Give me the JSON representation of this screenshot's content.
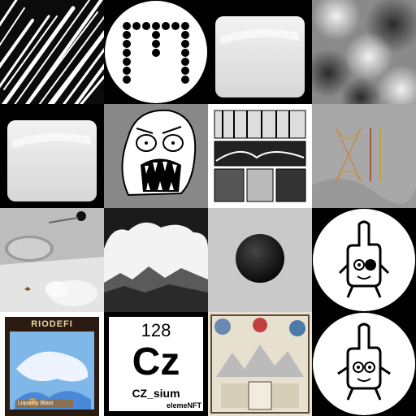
{
  "gallery": {
    "tiles": [
      {
        "id": "streaks"
      },
      {
        "id": "dot-m-logo"
      },
      {
        "id": "blank-gray-card-1"
      },
      {
        "id": "gray-clouds"
      },
      {
        "id": "blank-gray-card-2"
      },
      {
        "id": "rage-face"
      },
      {
        "id": "manga-forest-panels"
      },
      {
        "id": "gray-wall-glyphs"
      },
      {
        "id": "gray-room-scene"
      },
      {
        "id": "foggy-landscape"
      },
      {
        "id": "black-sphere"
      },
      {
        "id": "middle-finger-character-1"
      },
      {
        "id": "riodefi-card",
        "title": "RIODEFI",
        "footer": "Liquidity Blast"
      },
      {
        "id": "element-card",
        "number": "128",
        "symbol": "Cz",
        "name": "CZ_sium",
        "brand": "elemeNFT"
      },
      {
        "id": "vintage-poster"
      },
      {
        "id": "middle-finger-character-2"
      }
    ]
  }
}
